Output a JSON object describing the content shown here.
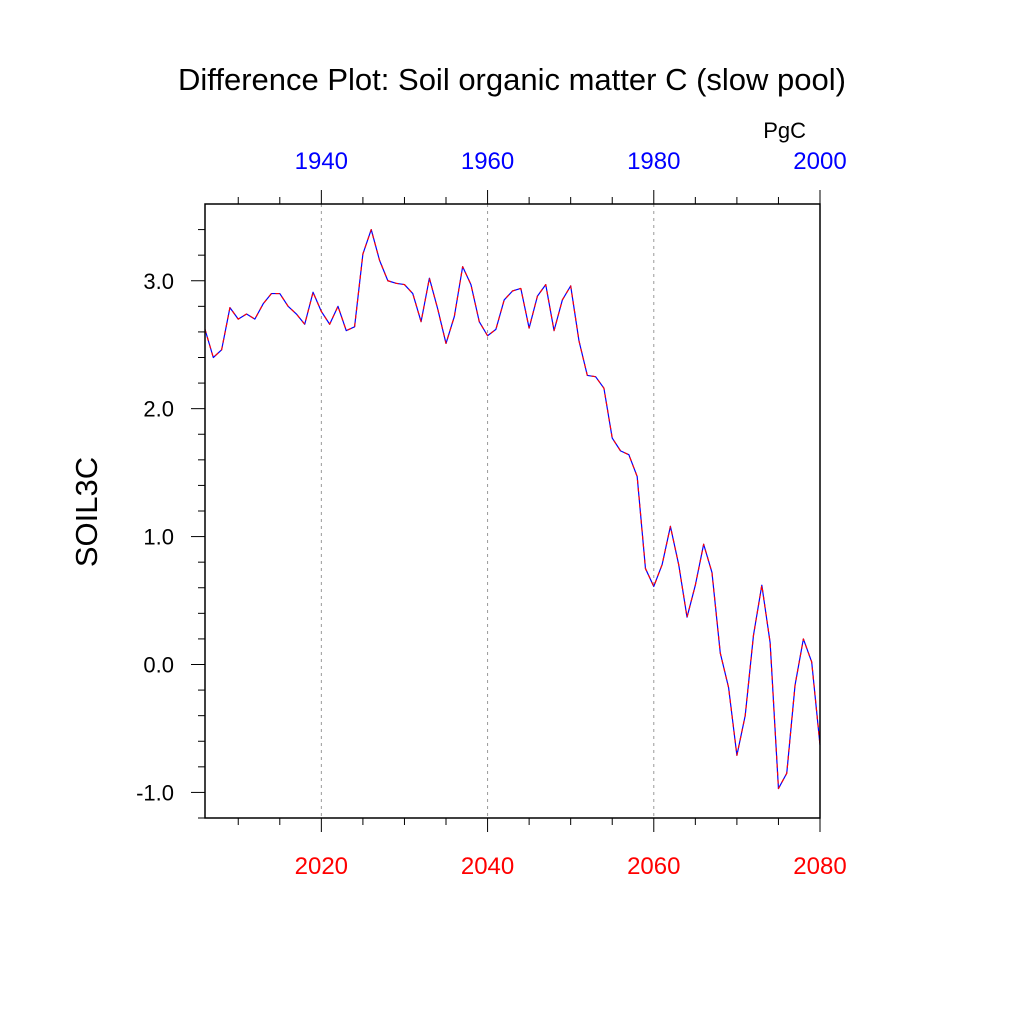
{
  "chart_data": {
    "type": "line",
    "title": "Difference Plot: Soil organic matter C (slow pool)",
    "units": "PgC",
    "ylabel": "SOIL3C",
    "xlabel": "",
    "ylim": [
      -1.2,
      3.6
    ],
    "y_ticks": [
      {
        "value": -1.0,
        "label": "-1.0"
      },
      {
        "value": 0.0,
        "label": "0.0"
      },
      {
        "value": 1.0,
        "label": "1.0"
      },
      {
        "value": 2.0,
        "label": "2.0"
      },
      {
        "value": 3.0,
        "label": "3.0"
      }
    ],
    "x_bottom": {
      "range": [
        2006,
        2080
      ],
      "color": "#ff0000",
      "ticks": [
        {
          "value": 2020,
          "label": "2020"
        },
        {
          "value": 2040,
          "label": "2040"
        },
        {
          "value": 2060,
          "label": "2060"
        },
        {
          "value": 2080,
          "label": "2080"
        }
      ]
    },
    "x_top": {
      "range": [
        1926,
        2000
      ],
      "color": "#0000ff",
      "ticks": [
        {
          "value": 1940,
          "label": "1940"
        },
        {
          "value": 1960,
          "label": "1960"
        },
        {
          "value": 1980,
          "label": "1980"
        },
        {
          "value": 2000,
          "label": "2000"
        }
      ]
    },
    "grid": "vertical dotted at major bottom ticks",
    "series": [
      {
        "color_a": "#0000ff",
        "color_b": "#ff0000",
        "style": "dashed overlay",
        "x": [
          2006,
          2007,
          2008,
          2009,
          2010,
          2011,
          2012,
          2013,
          2014,
          2015,
          2016,
          2017,
          2018,
          2019,
          2020,
          2021,
          2022,
          2023,
          2024,
          2025,
          2026,
          2027,
          2028,
          2029,
          2030,
          2031,
          2032,
          2033,
          2034,
          2035,
          2036,
          2037,
          2038,
          2039,
          2040,
          2041,
          2042,
          2043,
          2044,
          2045,
          2046,
          2047,
          2048,
          2049,
          2050,
          2051,
          2052,
          2053,
          2054,
          2055,
          2056,
          2057,
          2058,
          2059,
          2060,
          2061,
          2062,
          2063,
          2064,
          2065,
          2066,
          2067,
          2068,
          2069,
          2070,
          2071,
          2072,
          2073,
          2074,
          2075,
          2076,
          2077,
          2078,
          2079,
          2080
        ],
        "values": [
          2.62,
          2.4,
          2.46,
          2.79,
          2.7,
          2.74,
          2.7,
          2.82,
          2.9,
          2.9,
          2.8,
          2.74,
          2.66,
          2.91,
          2.76,
          2.66,
          2.8,
          2.61,
          2.64,
          3.21,
          3.4,
          3.16,
          3.0,
          2.98,
          2.97,
          2.9,
          2.68,
          3.02,
          2.78,
          2.51,
          2.72,
          3.11,
          2.97,
          2.68,
          2.57,
          2.62,
          2.85,
          2.92,
          2.94,
          2.63,
          2.88,
          2.97,
          2.61,
          2.85,
          2.96,
          2.53,
          2.26,
          2.25,
          2.16,
          1.77,
          1.67,
          1.64,
          1.47,
          0.75,
          0.61,
          0.78,
          1.08,
          0.78,
          0.37,
          0.62,
          0.94,
          0.72,
          0.09,
          -0.18,
          -0.71,
          -0.4,
          0.23,
          0.62,
          0.17,
          -0.97,
          -0.85,
          -0.16,
          0.2,
          0.02,
          -0.63
        ]
      }
    ]
  }
}
